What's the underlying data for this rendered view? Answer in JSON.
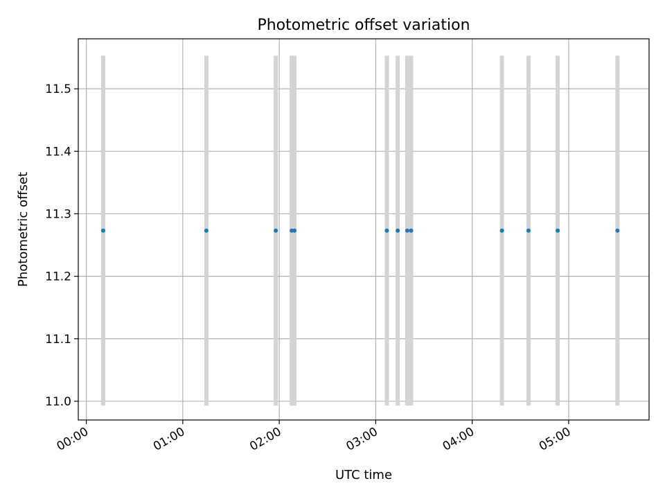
{
  "chart_data": {
    "type": "scatter",
    "title": "Photometric offset variation",
    "xlabel": "UTC time",
    "ylabel": "Photometric offset",
    "xlim": [
      "23:55",
      "05:50"
    ],
    "ylim": [
      10.97,
      11.58
    ],
    "x_ticks": [
      "00:00",
      "01:00",
      "02:00",
      "03:00",
      "04:00",
      "05:00"
    ],
    "y_ticks": [
      "11.0",
      "11.1",
      "11.2",
      "11.3",
      "11.4",
      "11.5"
    ],
    "grid": true,
    "colors": {
      "point": "#1f77b4",
      "errorbar": "#d3d3d3",
      "grid": "#b0b0b0"
    },
    "series": [
      {
        "points": [
          {
            "x": "00:10:30",
            "y": 11.273,
            "ymin": 10.993,
            "ymax": 11.553
          },
          {
            "x": "01:14:40",
            "y": 11.273,
            "ymin": 10.993,
            "ymax": 11.553
          },
          {
            "x": "01:57:50",
            "y": 11.273,
            "ymin": 10.993,
            "ymax": 11.553
          },
          {
            "x": "02:07:45",
            "y": 11.273,
            "ymin": 10.993,
            "ymax": 11.553
          },
          {
            "x": "02:09:25",
            "y": 11.273,
            "ymin": 10.993,
            "ymax": 11.553
          },
          {
            "x": "03:06:55",
            "y": 11.273,
            "ymin": 10.993,
            "ymax": 11.553
          },
          {
            "x": "03:13:40",
            "y": 11.273,
            "ymin": 10.993,
            "ymax": 11.553
          },
          {
            "x": "03:19:35",
            "y": 11.273,
            "ymin": 10.993,
            "ymax": 11.553
          },
          {
            "x": "03:22:00",
            "y": 11.273,
            "ymin": 10.993,
            "ymax": 11.553
          },
          {
            "x": "04:18:30",
            "y": 11.273,
            "ymin": 10.993,
            "ymax": 11.553
          },
          {
            "x": "04:35:00",
            "y": 11.273,
            "ymin": 10.993,
            "ymax": 11.553
          },
          {
            "x": "04:53:10",
            "y": 11.273,
            "ymin": 10.993,
            "ymax": 11.553
          },
          {
            "x": "05:30:20",
            "y": 11.273,
            "ymin": 10.993,
            "ymax": 11.553
          }
        ]
      }
    ]
  }
}
